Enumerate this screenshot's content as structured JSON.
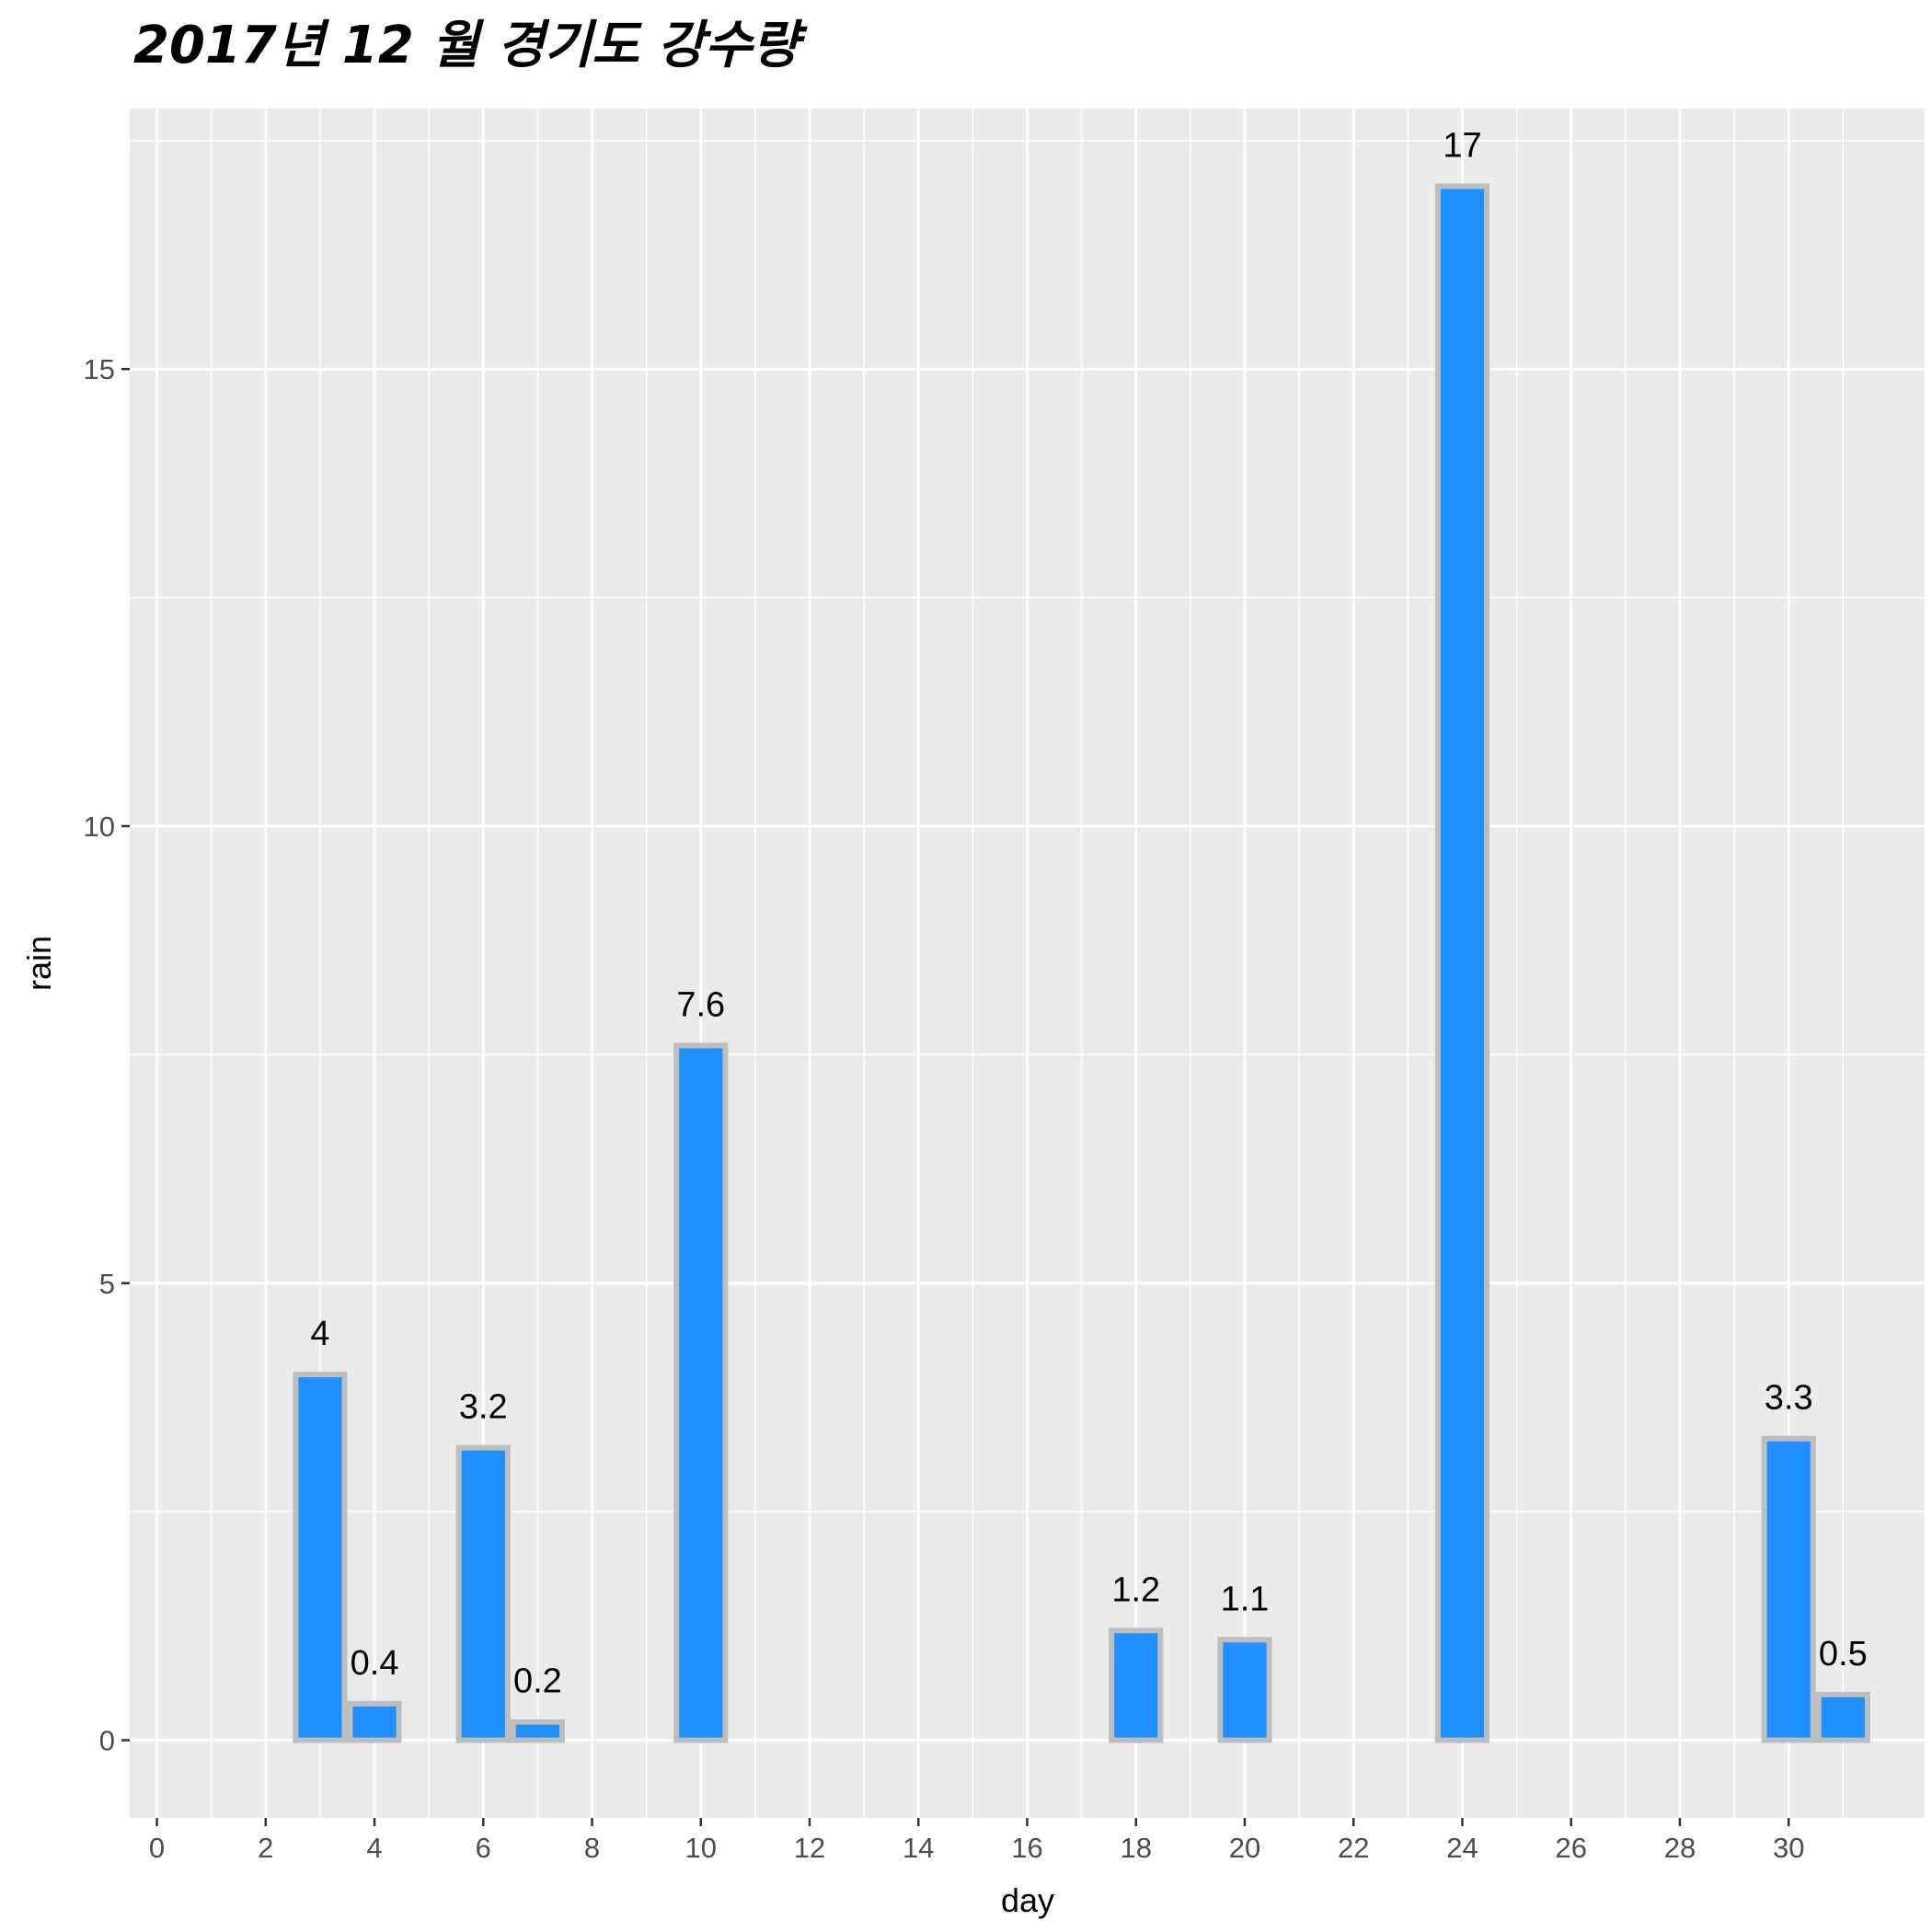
{
  "chart_data": {
    "type": "bar",
    "title": "2017년 12 월 경기도 강수량",
    "xlabel": "day",
    "ylabel": "rain",
    "x": [
      3,
      4,
      6,
      7,
      10,
      18,
      20,
      24,
      30,
      31
    ],
    "values": [
      4,
      0.4,
      3.2,
      0.2,
      7.6,
      1.2,
      1.1,
      17,
      3.3,
      0.5
    ],
    "data_labels": [
      "4",
      "0.4",
      "3.2",
      "0.2",
      "7.6",
      "1.2",
      "1.1",
      "17",
      "3.3",
      "0.5"
    ],
    "x_ticks": [
      0,
      2,
      4,
      6,
      8,
      10,
      12,
      14,
      16,
      18,
      20,
      22,
      24,
      26,
      28,
      30
    ],
    "y_ticks": [
      0,
      5,
      10,
      15
    ],
    "xlim": [
      -0.5,
      32.5
    ],
    "ylim": [
      -0.85,
      17.85
    ],
    "grid": true,
    "legend": "none",
    "colors": {
      "bar_fill": "#1E90FF",
      "bar_outline": "#BEBEBE",
      "panel_background": "#EBEBEB",
      "grid": "#FFFFFF"
    }
  }
}
